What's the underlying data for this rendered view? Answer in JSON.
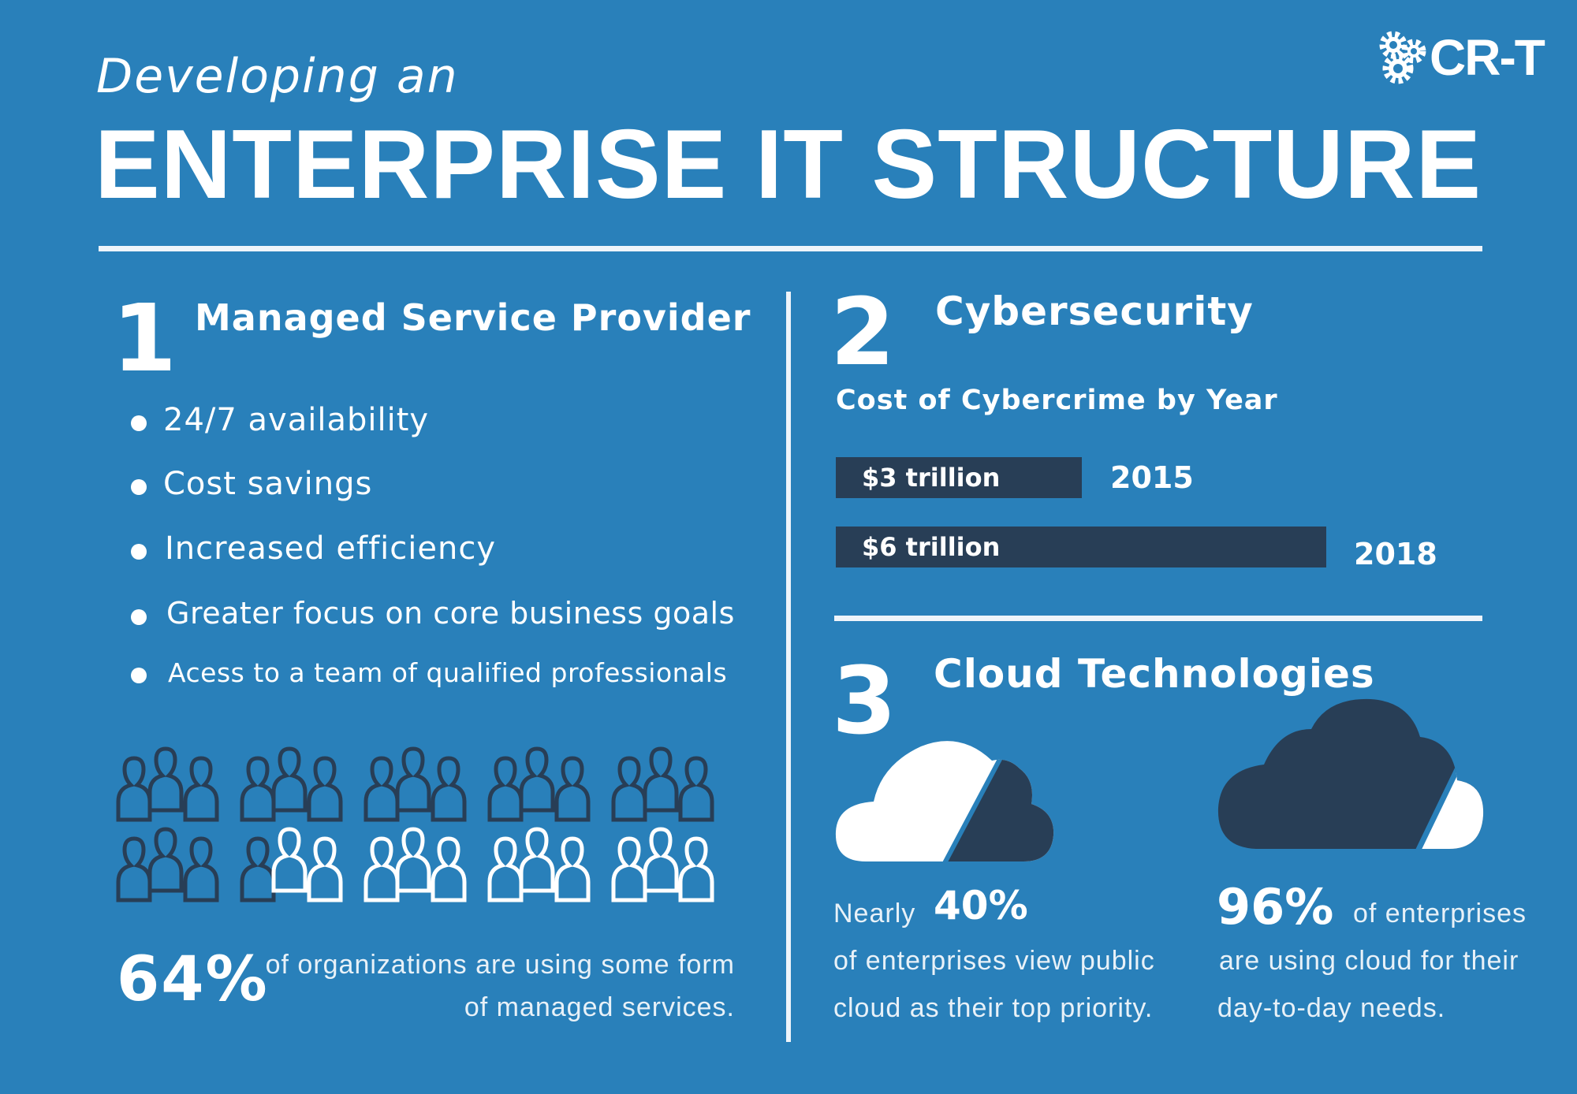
{
  "header": {
    "subtitle": "Developing an",
    "title": "ENTERPRISE IT STRUCTURE",
    "logo": "CR-T"
  },
  "section1": {
    "number": "1",
    "heading": "Managed Service Provider",
    "bullets": [
      "24/7 availability",
      "Cost savings",
      "Increased efficiency",
      "Greater focus on core business goals",
      "Acess to a team of qualified professionals"
    ],
    "people_total": 30,
    "people_highlighted": 19,
    "stat": "64%",
    "stat_line1": "of organizations are using some form",
    "stat_line2": "of managed services."
  },
  "section2": {
    "number": "2",
    "heading": "Cybersecurity",
    "chart_title": "Cost of Cybercrime by Year",
    "bars": [
      {
        "label": "$3 trillion",
        "year": "2015",
        "value": 3
      },
      {
        "label": "$6 trillion",
        "year": "2018",
        "value": 6
      }
    ]
  },
  "section3": {
    "number": "3",
    "heading": "Cloud Technologies",
    "left": {
      "prefix": "Nearly",
      "stat": "40%",
      "line1": "of enterprises view public",
      "line2": "cloud as their top priority.",
      "fraction": 0.4
    },
    "right": {
      "stat": "96%",
      "suffix": "of enterprises",
      "line1": "are using cloud for their",
      "line2": "day-to-day needs.",
      "fraction": 0.96
    }
  },
  "colors": {
    "background": "#2980ba",
    "dark": "#283e56",
    "white": "#ffffff"
  }
}
